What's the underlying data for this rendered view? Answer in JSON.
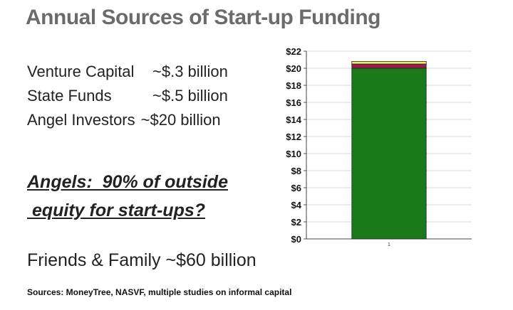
{
  "slide": {
    "title": "Annual Sources of Start-up Funding",
    "funding_rows": [
      {
        "source": "Venture Capital",
        "amount": "~$.3 billion"
      },
      {
        "source": "State Funds",
        "amount": "~$.5 billion"
      },
      {
        "source": "Angel Investors",
        "amount": "~$20 billion"
      }
    ],
    "angels_line1": "Angels:  90% of outside",
    "angels_line2": " equity for start-ups?",
    "friends_family": "Friends & Family  ~$60 billion",
    "sources": "Sources:  MoneyTree, NASVF, multiple studies on informal capital"
  },
  "chart_data": {
    "type": "bar",
    "stacked": true,
    "categories": [
      "1"
    ],
    "series": [
      {
        "values": [
          20
        ],
        "color": "#1a7a1a"
      },
      {
        "values": [
          0.5
        ],
        "color": "#9b1b4b"
      },
      {
        "values": [
          0.3
        ],
        "color": "#f2ee6c"
      }
    ],
    "ylim": [
      0,
      22
    ],
    "yticks": [
      0,
      2,
      4,
      6,
      8,
      10,
      12,
      14,
      16,
      18,
      20,
      22
    ],
    "ytick_labels": [
      "$0",
      "$2",
      "$4",
      "$6",
      "$8",
      "$10",
      "$12",
      "$14",
      "$16",
      "$18",
      "$20",
      "$22"
    ],
    "grid": true,
    "grid_color": "#d9d9d9",
    "title": "",
    "xlabel": "",
    "ylabel": ""
  }
}
